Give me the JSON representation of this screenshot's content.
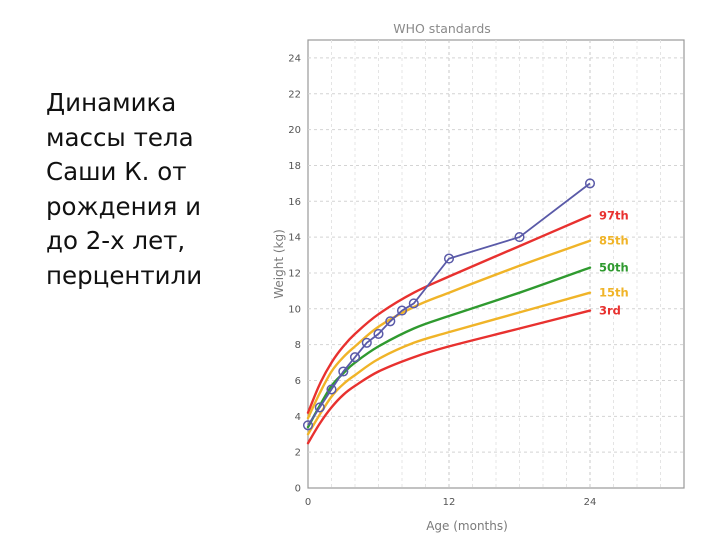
{
  "slide": {
    "text_lines": [
      "Динамика",
      "массы тела",
      "Саши К. от",
      "рождения и",
      "до 2-х лет,",
      "перцентили"
    ]
  },
  "chart_data": {
    "type": "line",
    "title": "WHO standards",
    "xlabel": "Age (months)",
    "ylabel": "Weight (kg)",
    "xlim": [
      0,
      32
    ],
    "ylim": [
      0,
      25
    ],
    "x_ticks": [
      0,
      12,
      24
    ],
    "y_ticks": [
      0,
      2,
      4,
      6,
      8,
      10,
      12,
      14,
      16,
      18,
      20,
      22,
      24
    ],
    "grid": true,
    "series": [
      {
        "name": "97th",
        "label": "97th",
        "color": "#e8312f",
        "x": [
          0,
          1,
          2,
          3,
          4,
          6,
          9,
          12,
          18,
          24
        ],
        "y": [
          4.2,
          5.8,
          7.0,
          7.9,
          8.6,
          9.7,
          10.9,
          11.8,
          13.5,
          15.2
        ]
      },
      {
        "name": "85th",
        "label": "85th",
        "color": "#f0b428",
        "x": [
          0,
          1,
          2,
          3,
          4,
          6,
          9,
          12,
          18,
          24
        ],
        "y": [
          3.9,
          5.3,
          6.5,
          7.3,
          7.9,
          9.0,
          10.1,
          10.9,
          12.4,
          13.8
        ]
      },
      {
        "name": "50th",
        "label": "50th",
        "color": "#2f9a2f",
        "x": [
          0,
          1,
          2,
          3,
          4,
          6,
          9,
          12,
          18,
          24
        ],
        "y": [
          3.4,
          4.6,
          5.7,
          6.4,
          7.0,
          7.9,
          8.9,
          9.6,
          10.9,
          12.3
        ]
      },
      {
        "name": "15th",
        "label": "15th",
        "color": "#f0b428",
        "x": [
          0,
          1,
          2,
          3,
          4,
          6,
          9,
          12,
          18,
          24
        ],
        "y": [
          3.0,
          4.1,
          5.1,
          5.8,
          6.3,
          7.2,
          8.1,
          8.7,
          9.8,
          10.9
        ]
      },
      {
        "name": "3rd",
        "label": "3rd",
        "color": "#e8312f",
        "x": [
          0,
          1,
          2,
          3,
          4,
          6,
          9,
          12,
          18,
          24
        ],
        "y": [
          2.5,
          3.6,
          4.5,
          5.2,
          5.7,
          6.5,
          7.3,
          7.9,
          8.9,
          9.9
        ]
      }
    ],
    "child": {
      "name": "Саша К.",
      "color": "#5a5aa8",
      "x": [
        0,
        1,
        2,
        3,
        4,
        5,
        6,
        7,
        8,
        9,
        12,
        18,
        24
      ],
      "y": [
        3.5,
        4.5,
        5.5,
        6.5,
        7.3,
        8.1,
        8.6,
        9.3,
        9.9,
        10.3,
        12.8,
        14.0,
        17.0
      ]
    }
  }
}
